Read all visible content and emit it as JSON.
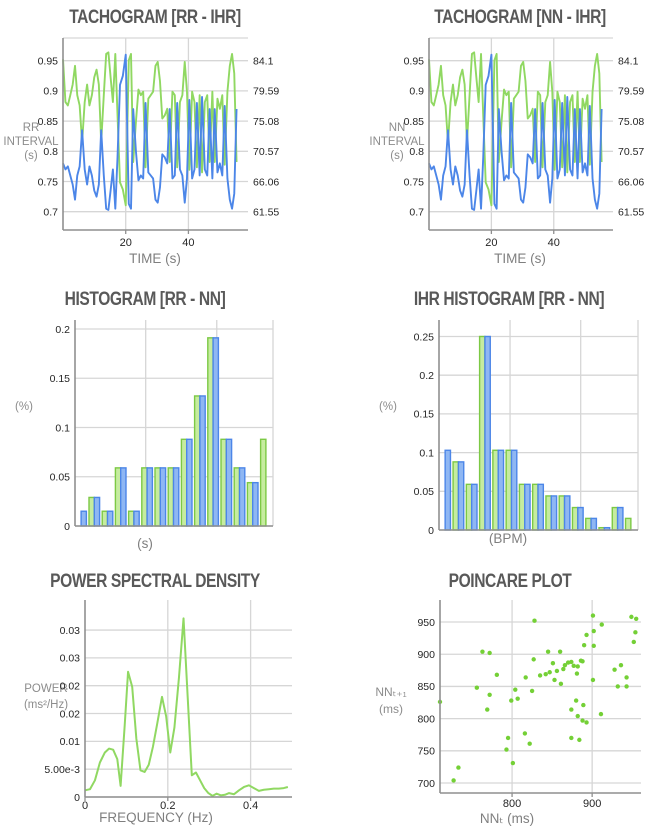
{
  "colors": {
    "rr_line": "#4c86e8",
    "ihr_line": "#90d862",
    "bar_green_fill": "#c6ec9f",
    "bar_green_edge": "#7cc944",
    "bar_blue_fill": "#8fb7f3",
    "bar_blue_edge": "#4c86e8",
    "scatter_dot": "#74d036",
    "grid": "#d6d6d6",
    "spine": "#8f8f8f",
    "title": "#595959",
    "axis_label": "#8c8c8c",
    "tick": "#262626"
  },
  "chart_data": [
    {
      "type": "tachogram",
      "title": "TACHOGRAM [RR - IHR]",
      "xlabel": "TIME (s)",
      "ylabel": "RR\nINTERVAL\n(s)",
      "x_ticks": [
        20,
        40
      ],
      "x_tick_labels": [
        "20",
        "40"
      ],
      "xlim": [
        0,
        59
      ],
      "yleft_ticks": [
        0.7,
        0.75,
        0.8,
        0.85,
        0.9,
        0.95
      ],
      "yleft_tick_labels": [
        "0.7",
        "0.75",
        "0.8",
        "0.85",
        "0.9",
        "0.95"
      ],
      "yleft_lim": [
        0.6697,
        0.9876
      ],
      "yright_ticks": [
        61.55,
        66.06,
        70.57,
        75.08,
        79.59,
        84.1
      ],
      "yright_tick_labels": [
        "61.55",
        "66.06",
        "70.57",
        "75.08",
        "79.59",
        "84.1"
      ],
      "series": [
        {
          "name": "RR",
          "unit": "s",
          "axis": "left",
          "values": [
            0.78,
            0.77,
            0.775,
            0.76,
            0.745,
            0.72,
            0.76,
            0.775,
            0.835,
            0.77,
            0.745,
            0.775,
            0.76,
            0.735,
            0.725,
            0.745,
            0.835,
            0.76,
            0.705,
            0.703,
            0.735,
            0.77,
            0.705,
            0.79,
            0.91,
            0.925,
            0.96,
            0.713,
            0.705,
            0.87,
            0.8,
            0.752,
            0.76,
            0.755,
            0.88,
            0.765,
            0.76,
            0.755,
            0.72,
            0.715,
            0.74,
            0.795,
            0.79,
            0.78,
            0.87,
            0.755,
            0.76,
            0.88,
            0.77,
            0.76,
            0.715,
            0.755,
            0.885,
            0.755,
            0.77,
            0.88,
            0.76,
            0.89,
            0.77,
            0.76,
            0.87,
            0.755,
            0.87,
            0.765,
            0.78,
            0.76,
            0.875,
            0.755,
            0.72,
            0.705,
            0.73,
            0.87
          ]
        },
        {
          "name": "IHR",
          "unit": "BPM",
          "axis": "right",
          "values": [
            84.3,
            77.92,
            77.42,
            78.95,
            80.54,
            83.33,
            78.95,
            77.42,
            71.86,
            77.92,
            80.54,
            77.42,
            78.95,
            81.63,
            82.76,
            80.54,
            71.86,
            78.95,
            85.11,
            85.35,
            81.63,
            77.92,
            85.11,
            75.95,
            65.93,
            64.86,
            62.5,
            84.15,
            85.11,
            68.97,
            75.0,
            79.79,
            78.95,
            79.47,
            68.18,
            78.43,
            78.95,
            79.47,
            83.33,
            83.92,
            81.08,
            75.47,
            75.95,
            76.92,
            68.97,
            79.47,
            78.95,
            68.18,
            77.92,
            78.95,
            83.92,
            79.47,
            67.8,
            79.47,
            77.92,
            68.18,
            78.95,
            67.42,
            77.92,
            78.95,
            68.97,
            79.47,
            68.97,
            78.43,
            76.92,
            78.95,
            68.57,
            79.47,
            83.33,
            85.11,
            82.19,
            68.97
          ]
        }
      ]
    },
    {
      "type": "tachogram",
      "title": "TACHOGRAM [NN - IHR]",
      "xlabel": "TIME (s)",
      "ylabel": "NN\nINTERVAL\n(s)",
      "x_ticks": [
        20,
        40
      ],
      "x_tick_labels": [
        "20",
        "40"
      ],
      "xlim": [
        0,
        59
      ],
      "yleft_ticks": [
        0.7,
        0.75,
        0.8,
        0.85,
        0.9,
        0.95
      ],
      "yleft_tick_labels": [
        "0.7",
        "0.75",
        "0.8",
        "0.85",
        "0.9",
        "0.95"
      ],
      "yleft_lim": [
        0.6697,
        0.9876
      ],
      "yright_ticks": [
        61.55,
        66.06,
        70.57,
        75.08,
        79.59,
        84.1
      ],
      "yright_tick_labels": [
        "61.55",
        "66.06",
        "70.57",
        "75.08",
        "79.59",
        "84.1"
      ],
      "series_same_as": 0
    },
    {
      "type": "histogram",
      "title": "HISTOGRAM [RR - NN]",
      "xlabel": "(s)",
      "ylabel": "(%)",
      "y_ticks": [
        0,
        0.05,
        0.1,
        0.15,
        0.2
      ],
      "y_tick_labels": [
        "0",
        "0.05",
        "0.1",
        "0.15",
        "0.2"
      ],
      "ylim": [
        0,
        0.2091
      ],
      "series": [
        {
          "name": "RR",
          "color": "green",
          "values": [
            0,
            0.029,
            0.015,
            0.059,
            0.015,
            0.059,
            0.059,
            0.059,
            0.088,
            0.132,
            0.191,
            0.088,
            0.059,
            0.044,
            0.088
          ]
        },
        {
          "name": "NN",
          "color": "blue",
          "values": [
            0.015,
            0.029,
            0.015,
            0.059,
            0.015,
            0.059,
            0.059,
            0.059,
            0.088,
            0.132,
            0.191,
            0.088,
            0.059,
            0.044,
            0
          ]
        }
      ]
    },
    {
      "type": "histogram",
      "title": "IHR HISTOGRAM [RR - NN]",
      "xlabel": "(BPM)",
      "ylabel": "(%)",
      "y_ticks": [
        0,
        0.05,
        0.1,
        0.15,
        0.2,
        0.25
      ],
      "y_tick_labels": [
        "0",
        "0.05",
        "0.1",
        "0.15",
        "0.2",
        "0.25"
      ],
      "ylim": [
        0,
        0.2713
      ],
      "series": [
        {
          "name": "RR",
          "color": "green",
          "values": [
            0,
            0.088,
            0.059,
            0.25,
            0.103,
            0.103,
            0.059,
            0.059,
            0.044,
            0.044,
            0.029,
            0.015,
            0.003,
            0.029,
            0.015
          ]
        },
        {
          "name": "NN",
          "color": "blue",
          "values": [
            0.103,
            0.088,
            0.059,
            0.25,
            0.103,
            0.103,
            0.059,
            0.059,
            0.044,
            0.044,
            0.029,
            0.015,
            0.003,
            0.029,
            0
          ]
        }
      ]
    },
    {
      "type": "line",
      "title": "POWER SPECTRAL DENSITY",
      "xlabel": "FREQUENCY (Hz)",
      "ylabel": "POWER\n(ms²/Hz)",
      "x_ticks": [
        0,
        0.2,
        0.4
      ],
      "x_tick_labels": [
        "0",
        "0.2",
        "0.4"
      ],
      "xlim": [
        0,
        0.5
      ],
      "y_ticks": [
        0,
        0.005,
        0.01,
        0.015,
        0.02,
        0.025,
        0.03
      ],
      "y_tick_labels": [
        "0",
        "5.00e-3",
        "0.01",
        "0.02",
        "0.02",
        "0.03",
        "0.03"
      ],
      "ylim": [
        0,
        0.0354
      ],
      "x": [
        0,
        0.012,
        0.024,
        0.036,
        0.048,
        0.058,
        0.068,
        0.078,
        0.086,
        0.096,
        0.104,
        0.114,
        0.124,
        0.134,
        0.144,
        0.154,
        0.164,
        0.174,
        0.186,
        0.196,
        0.206,
        0.216,
        0.227,
        0.238,
        0.248,
        0.258,
        0.268,
        0.278,
        0.288,
        0.298,
        0.308,
        0.318,
        0.328,
        0.338,
        0.348,
        0.36,
        0.372,
        0.384,
        0.396,
        0.408,
        0.42,
        0.432,
        0.444,
        0.456,
        0.468,
        0.48,
        0.49
      ],
      "y": [
        0.0012,
        0.0014,
        0.003,
        0.0062,
        0.008,
        0.0087,
        0.0085,
        0.0068,
        0.002,
        0.013,
        0.0225,
        0.0198,
        0.0105,
        0.0048,
        0.0045,
        0.0058,
        0.009,
        0.013,
        0.018,
        0.0145,
        0.008,
        0.0125,
        0.0215,
        0.0321,
        0.018,
        0.0039,
        0.0044,
        0.003,
        0.0016,
        0.0007,
        0.0002,
        0.0006,
        0.0003,
        0.0004,
        0.0007,
        0.0005,
        0.0012,
        0.0018,
        0.0021,
        0.0016,
        0.0011,
        0.0013,
        0.0014,
        0.0015,
        0.0015,
        0.0016,
        0.0018
      ]
    },
    {
      "type": "scatter",
      "title": "POINCARE PLOT",
      "xlabel": "NNₜ (ms)",
      "ylabel": "NNₜ₊₁\n(ms)",
      "x_ticks": [
        800,
        900
      ],
      "x_tick_labels": [
        "800",
        "900"
      ],
      "xlim": [
        710,
        961
      ],
      "y_ticks": [
        700,
        750,
        800,
        850,
        900,
        950
      ],
      "y_tick_labels": [
        "700",
        "750",
        "800",
        "850",
        "900",
        "950"
      ],
      "ylim": [
        684.5,
        984.2
      ],
      "points": [
        [
          828,
          952
        ],
        [
          949,
          958
        ],
        [
          955,
          955
        ],
        [
          901,
          960
        ],
        [
          912,
          946
        ],
        [
          902,
          936
        ],
        [
          954,
          934
        ],
        [
          893,
          930
        ],
        [
          952,
          919
        ],
        [
          890,
          914
        ],
        [
          902,
          913
        ],
        [
          763,
          904
        ],
        [
          772,
          902
        ],
        [
          845,
          904
        ],
        [
          860,
          904
        ],
        [
          827,
          892
        ],
        [
          888,
          889
        ],
        [
          851,
          886
        ],
        [
          866,
          883
        ],
        [
          870,
          887
        ],
        [
          874,
          888
        ],
        [
          877,
          882
        ],
        [
          882,
          881
        ],
        [
          886,
          890
        ],
        [
          864,
          877
        ],
        [
          856,
          874
        ],
        [
          847,
          872
        ],
        [
          842,
          869
        ],
        [
          835,
          867
        ],
        [
          853,
          860
        ],
        [
          861,
          854
        ],
        [
          881,
          870
        ],
        [
          901,
          860
        ],
        [
          928,
          876
        ],
        [
          936,
          883
        ],
        [
          943,
          864
        ],
        [
          932,
          850
        ],
        [
          943,
          850
        ],
        [
          756,
          848
        ],
        [
          781,
          868
        ],
        [
          817,
          864
        ],
        [
          825,
          843
        ],
        [
          804,
          845
        ],
        [
          807,
          831
        ],
        [
          772,
          837
        ],
        [
          710,
          826
        ],
        [
          769,
          814
        ],
        [
          799,
          828
        ],
        [
          880,
          828
        ],
        [
          889,
          821
        ],
        [
          874,
          814
        ],
        [
          882,
          804
        ],
        [
          888,
          797
        ],
        [
          893,
          794
        ],
        [
          911,
          807
        ],
        [
          874,
          770
        ],
        [
          884,
          767
        ],
        [
          795,
          770
        ],
        [
          816,
          777
        ],
        [
          793,
          752
        ],
        [
          822,
          761
        ],
        [
          801,
          731
        ],
        [
          733,
          724
        ],
        [
          727,
          704
        ]
      ]
    }
  ]
}
